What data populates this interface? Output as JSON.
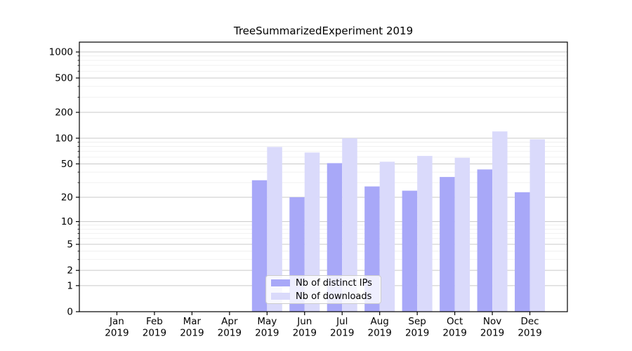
{
  "chart_data": {
    "type": "bar",
    "title": "TreeSummarizedExperiment 2019",
    "categories": [
      "Jan",
      "Feb",
      "Mar",
      "Apr",
      "May",
      "Jun",
      "Jul",
      "Aug",
      "Sep",
      "Oct",
      "Nov",
      "Dec"
    ],
    "category_year": "2019",
    "series": [
      {
        "name": "Nb of distinct IPs",
        "color": "#a8a8f8",
        "values": [
          0,
          0,
          0,
          0,
          32,
          20,
          51,
          27,
          24,
          35,
          43,
          23
        ]
      },
      {
        "name": "Nb of downloads",
        "color": "#dadafb",
        "values": [
          0,
          0,
          0,
          0,
          79,
          68,
          100,
          53,
          62,
          59,
          120,
          97
        ]
      }
    ],
    "yscale": "log1p",
    "yticks": [
      0,
      1,
      2,
      5,
      10,
      20,
      50,
      100,
      200,
      500,
      1000
    ],
    "minor_yticks": [
      3,
      4,
      6,
      7,
      8,
      9,
      30,
      40,
      60,
      70,
      80,
      90,
      300,
      400,
      600,
      700,
      800,
      900
    ],
    "ylim": [
      0,
      1300
    ],
    "xlabel": "",
    "ylabel": "",
    "grid": true,
    "legend_position": "lower center",
    "colors": {
      "major_grid": "#c9c9c9",
      "minor_grid": "#ededed",
      "spine": "#000000",
      "text": "#000000",
      "background": "#ffffff"
    }
  }
}
